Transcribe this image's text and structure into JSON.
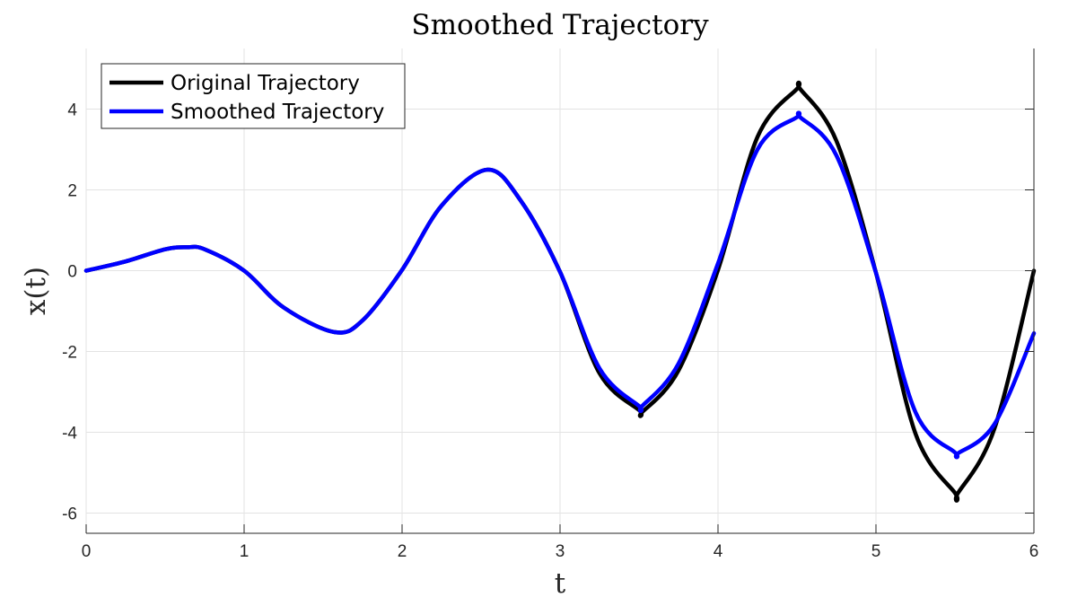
{
  "chart_data": {
    "type": "line",
    "title": "Smoothed Trajectory",
    "xlabel": "t",
    "ylabel": "x(t)",
    "xlim": [
      0,
      6
    ],
    "ylim": [
      -6.5,
      5.5
    ],
    "xticks": [
      0,
      1,
      2,
      3,
      4,
      5,
      6
    ],
    "yticks": [
      -6,
      -4,
      -2,
      0,
      2,
      4
    ],
    "xtick_labels": [
      "0",
      "1",
      "2",
      "3",
      "4",
      "5",
      "6"
    ],
    "ytick_labels": [
      "-6",
      "-4",
      "-2",
      "0",
      "2",
      "4"
    ],
    "grid": true,
    "legend_position": "top-left",
    "x": [
      0,
      0.25,
      0.5,
      0.64,
      0.75,
      1.0,
      1.25,
      1.57,
      1.75,
      2.0,
      2.25,
      2.54,
      2.75,
      3.0,
      3.25,
      3.5,
      3.52,
      3.75,
      4.0,
      4.25,
      4.5,
      4.52,
      4.75,
      5.0,
      5.25,
      5.5,
      5.52,
      5.75,
      6.0
    ],
    "series": [
      {
        "name": "Original Trajectory",
        "color": "#000000",
        "values": [
          0,
          0.23,
          0.53,
          0.58,
          0.53,
          0,
          -0.91,
          -1.52,
          -1.23,
          0.02,
          1.61,
          2.5,
          1.74,
          -0.03,
          -2.54,
          -3.45,
          -3.5,
          -2.47,
          0.02,
          3.31,
          4.5,
          4.5,
          3.21,
          -0.05,
          -4.03,
          -5.5,
          -5.5,
          -3.91,
          0
        ]
      },
      {
        "name": "Smoothed Trajectory",
        "color": "#0000ff",
        "values": [
          0,
          0.23,
          0.53,
          0.58,
          0.53,
          0,
          -0.91,
          -1.52,
          -1.23,
          0.02,
          1.61,
          2.5,
          1.74,
          -0.03,
          -2.42,
          -3.35,
          -3.35,
          -2.3,
          0.18,
          3.0,
          3.8,
          3.8,
          2.85,
          -0.05,
          -3.5,
          -4.5,
          -4.52,
          -3.8,
          -1.55
        ]
      }
    ]
  }
}
